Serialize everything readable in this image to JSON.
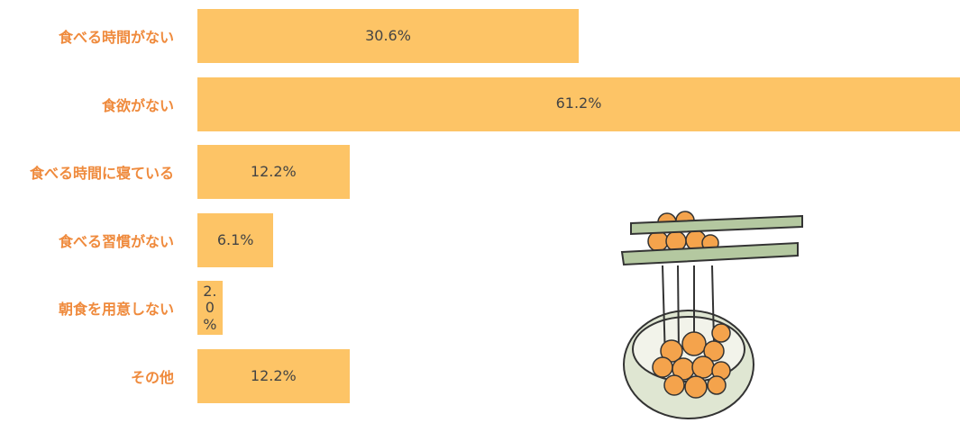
{
  "chart_data": {
    "type": "bar",
    "orientation": "horizontal",
    "categories": [
      "食べる時間がない",
      "食欲がない",
      "食べる時間に寝ている",
      "食べる習慣がない",
      "朝食を用意しない",
      "その他"
    ],
    "values": [
      30.6,
      61.2,
      12.2,
      6.1,
      2.0,
      12.2
    ],
    "value_labels": [
      "30.6%",
      "61.2%",
      "12.2%",
      "6.1%",
      "2.0%",
      "12.2%"
    ],
    "color": "#fdc466",
    "label_color": "#ef8a3c"
  }
}
